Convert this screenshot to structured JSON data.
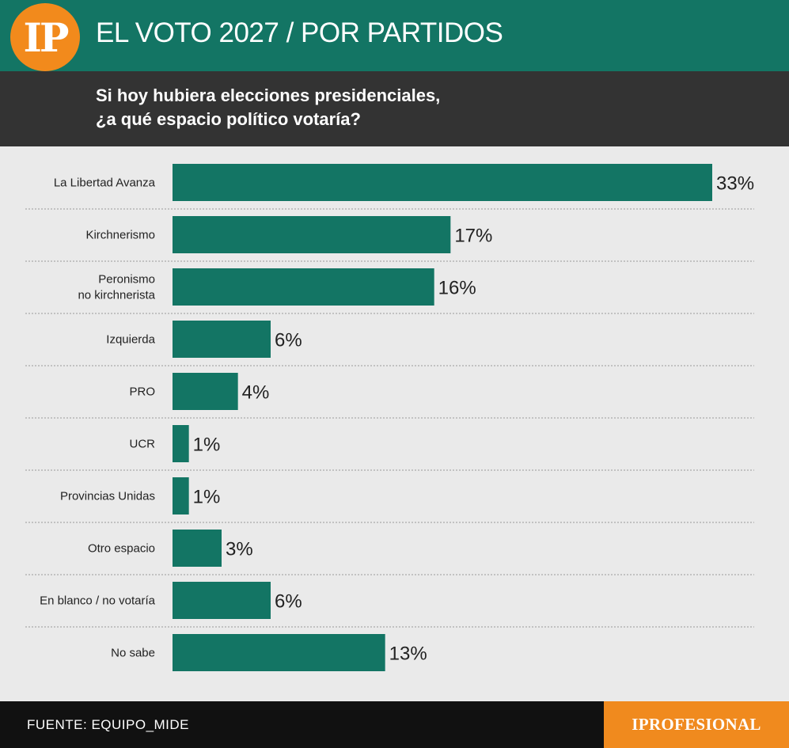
{
  "header": {
    "logo_text": "IP",
    "title": "EL VOTO 2027 / POR PARTIDOS",
    "question_line1": "Si hoy hubiera elecciones presidenciales,",
    "question_line2": "¿a qué espacio político votaría?"
  },
  "footer": {
    "source": "FUENTE: EQUIPO_MIDE",
    "brand": "IPROFESIONAL"
  },
  "colors": {
    "bar": "#137564",
    "accent": "#f28a1c",
    "header_band": "#137564",
    "question_band": "#333333"
  },
  "chart_data": {
    "type": "bar",
    "orientation": "horizontal",
    "title": "EL VOTO 2027 / POR PARTIDOS",
    "subtitle": "Si hoy hubiera elecciones presidenciales, ¿a qué espacio político votaría?",
    "categories": [
      [
        "La Libertad Avanza"
      ],
      [
        "Kirchnerismo"
      ],
      [
        "Peronismo",
        "no kirchnerista"
      ],
      [
        "Izquierda"
      ],
      [
        "PRO"
      ],
      [
        "UCR"
      ],
      [
        "Provincias Unidas"
      ],
      [
        "Otro espacio"
      ],
      [
        "En blanco / no votaría"
      ],
      [
        "No sabe"
      ]
    ],
    "values": [
      33,
      17,
      16,
      6,
      4,
      1,
      1,
      3,
      6,
      13
    ],
    "value_labels": [
      "33%",
      "17%",
      "16%",
      "6%",
      "4%",
      "1%",
      "1%",
      "3%",
      "6%",
      "13%"
    ],
    "unit": "%",
    "grid": false
  }
}
